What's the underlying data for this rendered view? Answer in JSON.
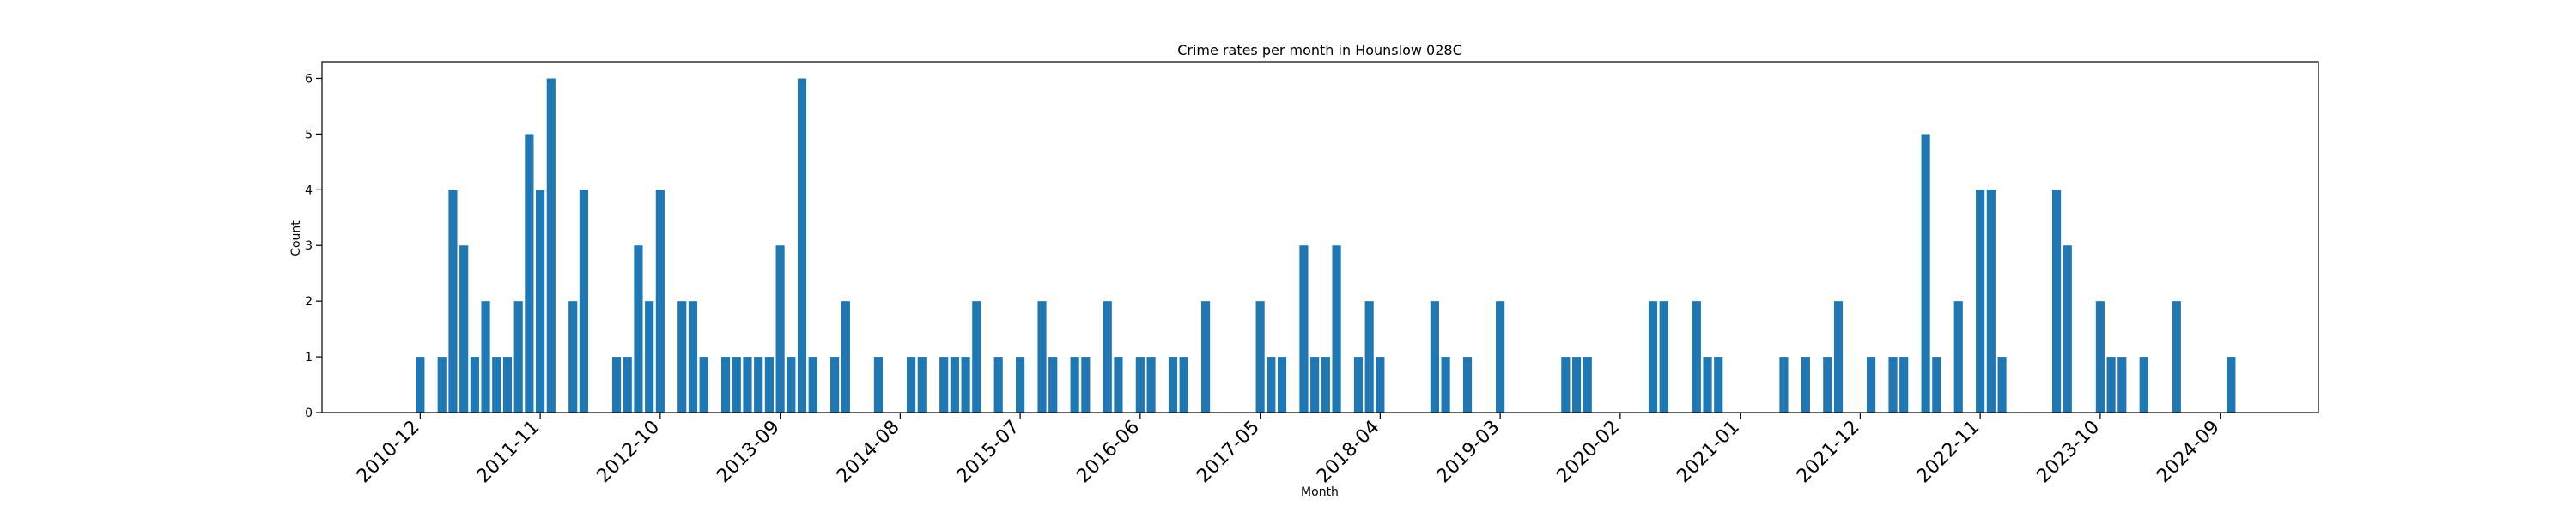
{
  "chart_data": {
    "type": "bar",
    "title": "Crime rates per month in Hounslow 028C",
    "xlabel": "Month",
    "ylabel": "Count",
    "ylim": [
      0,
      6.3
    ],
    "yticks": [
      0,
      1,
      2,
      3,
      4,
      5,
      6
    ],
    "xticks": [
      "2010-12",
      "2011-11",
      "2012-10",
      "2013-09",
      "2014-08",
      "2015-07",
      "2016-06",
      "2017-05",
      "2018-04",
      "2019-03",
      "2020-02",
      "2021-01",
      "2021-12",
      "2022-11",
      "2023-10",
      "2024-09"
    ],
    "x_range": [
      "2010-03",
      "2025-06"
    ],
    "grid": false,
    "legend": "none",
    "bar_color": "#1f77b4",
    "x": [
      "2010-12",
      "2011-02",
      "2011-03",
      "2011-04",
      "2011-05",
      "2011-06",
      "2011-07",
      "2011-08",
      "2011-09",
      "2011-10",
      "2011-11",
      "2011-12",
      "2012-02",
      "2012-03",
      "2012-06",
      "2012-07",
      "2012-08",
      "2012-09",
      "2012-10",
      "2012-12",
      "2013-01",
      "2013-02",
      "2013-04",
      "2013-05",
      "2013-06",
      "2013-07",
      "2013-08",
      "2013-09",
      "2013-10",
      "2013-11",
      "2013-12",
      "2014-02",
      "2014-03",
      "2014-06",
      "2014-09",
      "2014-10",
      "2014-12",
      "2015-01",
      "2015-02",
      "2015-03",
      "2015-05",
      "2015-07",
      "2015-09",
      "2015-10",
      "2015-12",
      "2016-01",
      "2016-03",
      "2016-04",
      "2016-06",
      "2016-07",
      "2016-09",
      "2016-10",
      "2016-12",
      "2017-05",
      "2017-06",
      "2017-07",
      "2017-09",
      "2017-10",
      "2017-11",
      "2017-12",
      "2018-02",
      "2018-03",
      "2018-04",
      "2018-09",
      "2018-10",
      "2018-12",
      "2019-03",
      "2019-09",
      "2019-10",
      "2019-11",
      "2020-05",
      "2020-06",
      "2020-09",
      "2020-10",
      "2020-11",
      "2021-05",
      "2021-07",
      "2021-09",
      "2021-10",
      "2022-01",
      "2022-03",
      "2022-04",
      "2022-06",
      "2022-07",
      "2022-09",
      "2022-11",
      "2022-12",
      "2023-01",
      "2023-06",
      "2023-07",
      "2023-10",
      "2023-11",
      "2023-12",
      "2024-02",
      "2024-05",
      "2024-10"
    ],
    "values": [
      1,
      1,
      4,
      3,
      1,
      2,
      1,
      1,
      2,
      5,
      4,
      6,
      2,
      4,
      1,
      1,
      3,
      2,
      4,
      2,
      2,
      1,
      1,
      1,
      1,
      1,
      1,
      3,
      1,
      6,
      1,
      1,
      2,
      1,
      1,
      1,
      1,
      1,
      1,
      2,
      1,
      1,
      2,
      1,
      1,
      1,
      2,
      1,
      1,
      1,
      1,
      1,
      2,
      2,
      1,
      1,
      3,
      1,
      1,
      3,
      1,
      2,
      1,
      2,
      1,
      1,
      2,
      1,
      1,
      1,
      2,
      2,
      2,
      1,
      1,
      1,
      1,
      1,
      2,
      1,
      1,
      1,
      5,
      1,
      2,
      4,
      4,
      1,
      4,
      3,
      2,
      1,
      1,
      1,
      2,
      1
    ]
  }
}
